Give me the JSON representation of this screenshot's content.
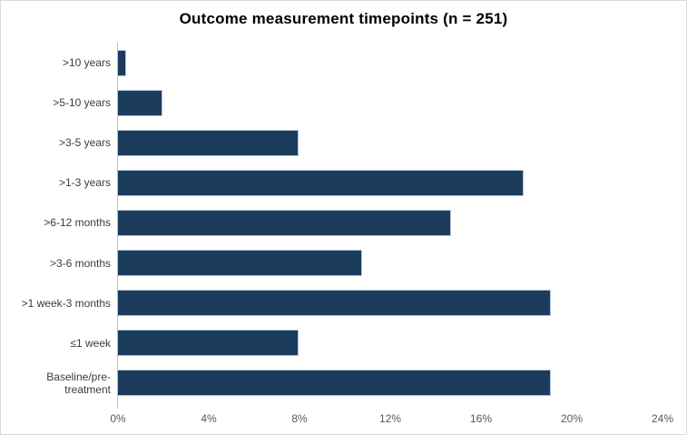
{
  "chart_data": {
    "type": "bar",
    "orientation": "horizontal",
    "title": "Outcome measurement timepoints (n = 251)",
    "categories": [
      ">10 years",
      ">5-10 years",
      ">3-5 years",
      ">1-3 years",
      ">6-12 months",
      ">3-6 months",
      ">1 week-3 months",
      "≤1 week",
      "Baseline/pre-treatment"
    ],
    "values_percent": [
      0.4,
      2.0,
      8.0,
      17.9,
      14.7,
      10.8,
      19.1,
      8.0,
      19.1
    ],
    "x_tick_labels": [
      "0%",
      "4%",
      "8%",
      "12%",
      "16%",
      "20%",
      "24%"
    ],
    "xlim": [
      0,
      24
    ],
    "xlabel": "",
    "ylabel": "",
    "grid": false,
    "legend": "none",
    "bar_color": "#1c3c5e",
    "bar_border_color": "#b3c6d9",
    "axis_line_color": "#bfbfbf",
    "tick_label_color": "#595959"
  }
}
